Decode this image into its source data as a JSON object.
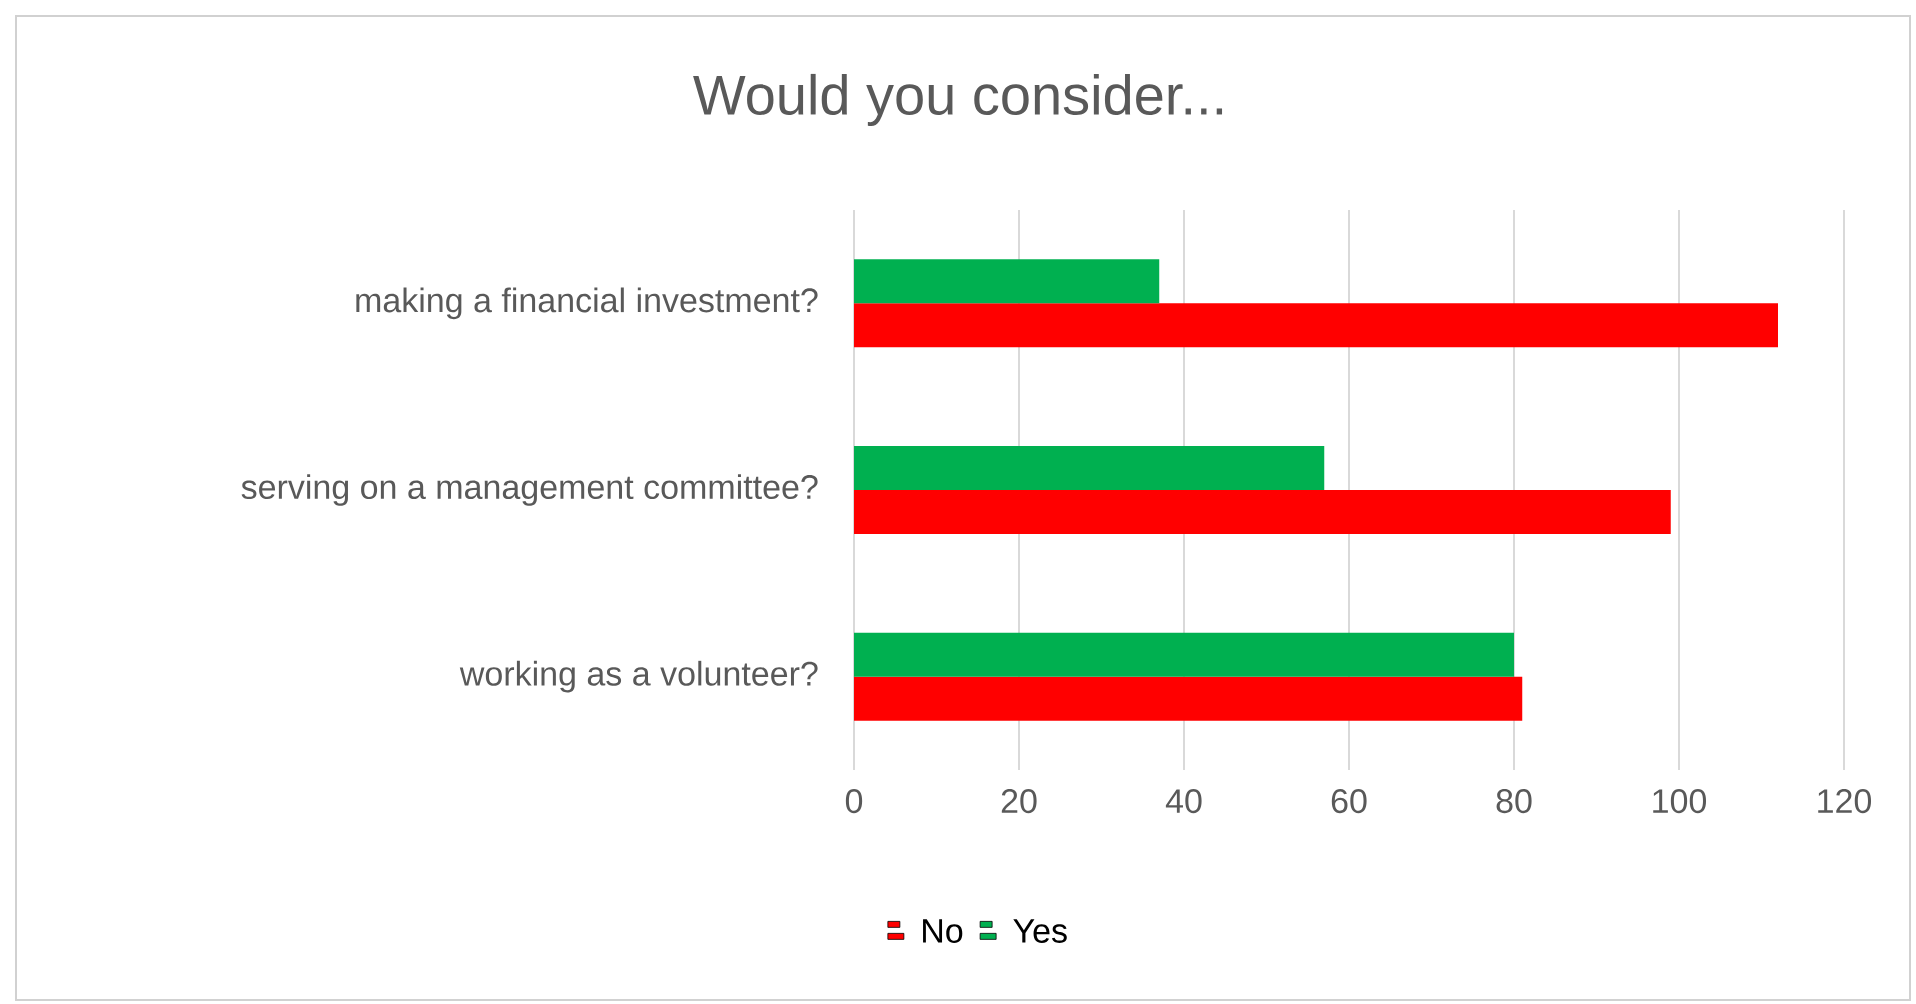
{
  "chart_data": {
    "type": "bar",
    "orientation": "horizontal",
    "title": "Would you consider...",
    "categories": [
      "making a financial investment?",
      "serving on a management committee?",
      "working as a volunteer?"
    ],
    "series": [
      {
        "name": "No",
        "color": "#ff0000",
        "values": [
          112,
          99,
          81
        ]
      },
      {
        "name": "Yes",
        "color": "#00b050",
        "values": [
          37,
          57,
          80
        ]
      }
    ],
    "xlim": [
      0,
      120
    ],
    "xticks": [
      0,
      20,
      40,
      60,
      80,
      100,
      120
    ],
    "grid": "x",
    "legend": "bottom"
  }
}
